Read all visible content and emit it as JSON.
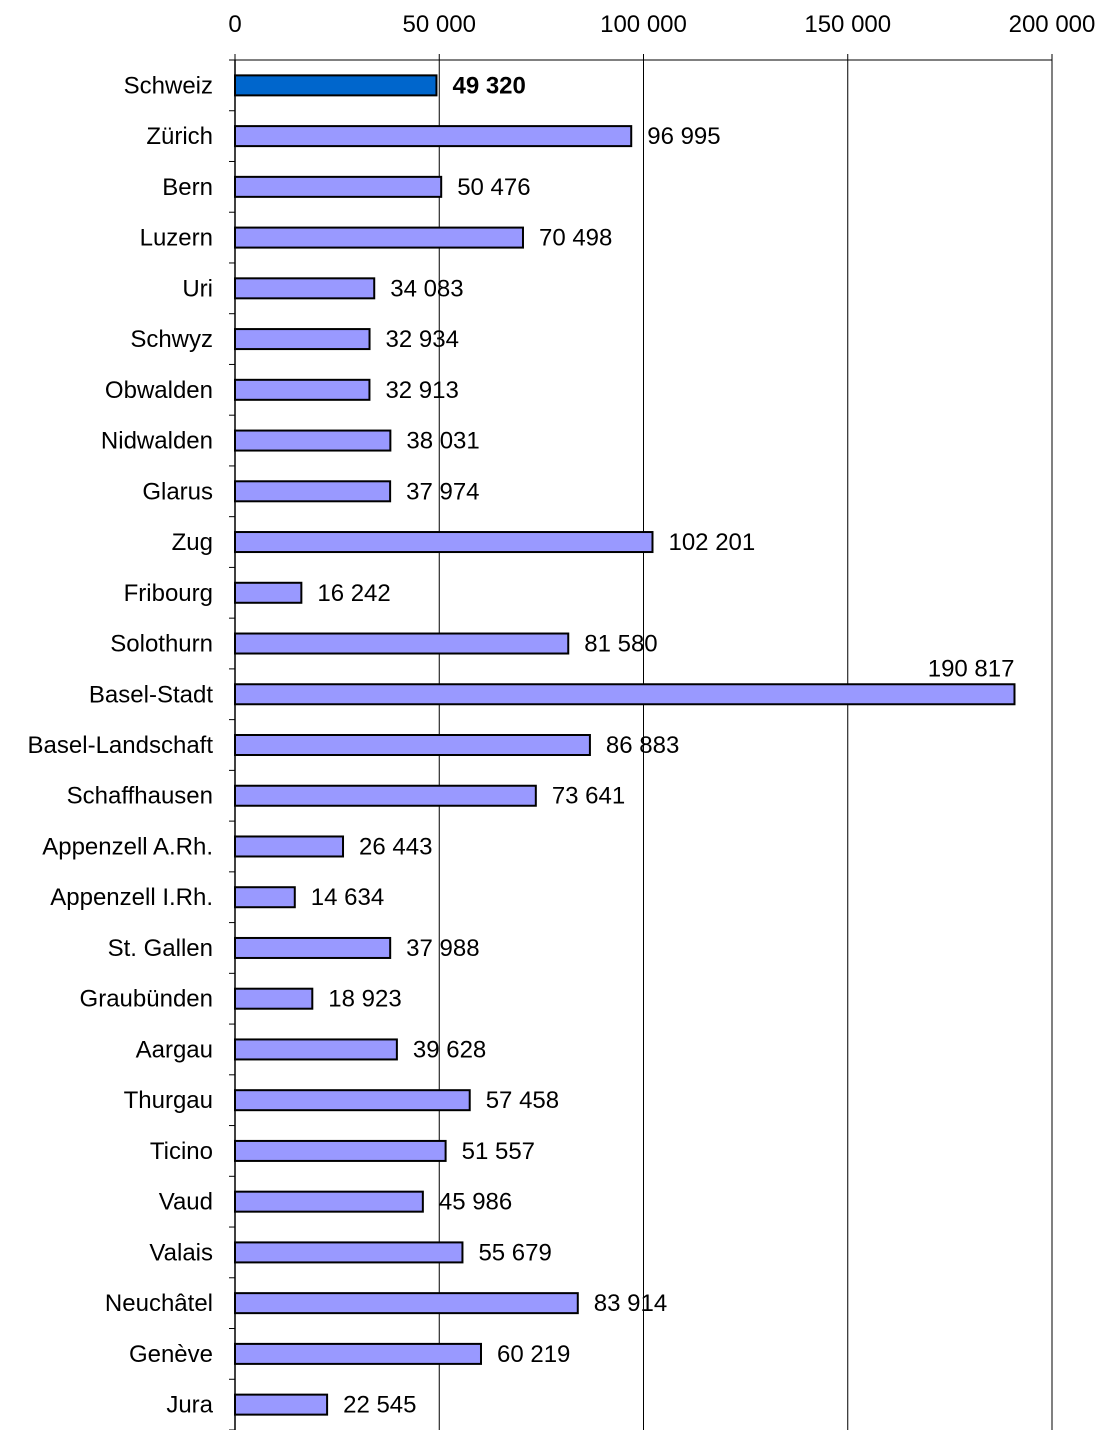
{
  "chart_data": {
    "type": "bar",
    "orientation": "horizontal",
    "title": "",
    "xlabel": "",
    "ylabel": "",
    "xlim": [
      0,
      200000
    ],
    "x_ticks": [
      0,
      50000,
      100000,
      150000,
      200000
    ],
    "x_tick_labels": [
      "0",
      "50 000",
      "100 000",
      "150 000",
      "200 000"
    ],
    "x_axis_position": "top",
    "grid": "vertical",
    "legend": "none",
    "categories": [
      "Schweiz",
      "Zürich",
      "Bern",
      "Luzern",
      "Uri",
      "Schwyz",
      "Obwalden",
      "Nidwalden",
      "Glarus",
      "Zug",
      "Fribourg",
      "Solothurn",
      "Basel-Stadt",
      "Basel-Landschaft",
      "Schaffhausen",
      "Appenzell A.Rh.",
      "Appenzell I.Rh.",
      "St. Gallen",
      "Graubünden",
      "Aargau",
      "Thurgau",
      "Ticino",
      "Vaud",
      "Valais",
      "Neuchâtel",
      "Genève",
      "Jura"
    ],
    "values": [
      49320,
      96995,
      50476,
      70498,
      34083,
      32934,
      32913,
      38031,
      37974,
      102201,
      16242,
      81580,
      190817,
      86883,
      73641,
      26443,
      14634,
      37988,
      18923,
      39628,
      57458,
      51557,
      45986,
      55679,
      83914,
      60219,
      22545
    ],
    "value_labels": [
      "49 320",
      "96 995",
      "50 476",
      "70 498",
      "34 083",
      "32 934",
      "32 913",
      "38 031",
      "37 974",
      "102 201",
      "16 242",
      "81 580",
      "190 817",
      "86 883",
      "73 641",
      "26 443",
      "14 634",
      "37 988",
      "18 923",
      "39 628",
      "57 458",
      "51 557",
      "45 986",
      "55 679",
      "83 914",
      "60 219",
      "22 545"
    ],
    "highlight_index": 0,
    "colors": {
      "bar": "#9999ff",
      "highlight_bar": "#0066cc",
      "bar_stroke": "#000000",
      "grid": "#000000",
      "axis": "#000000"
    }
  }
}
